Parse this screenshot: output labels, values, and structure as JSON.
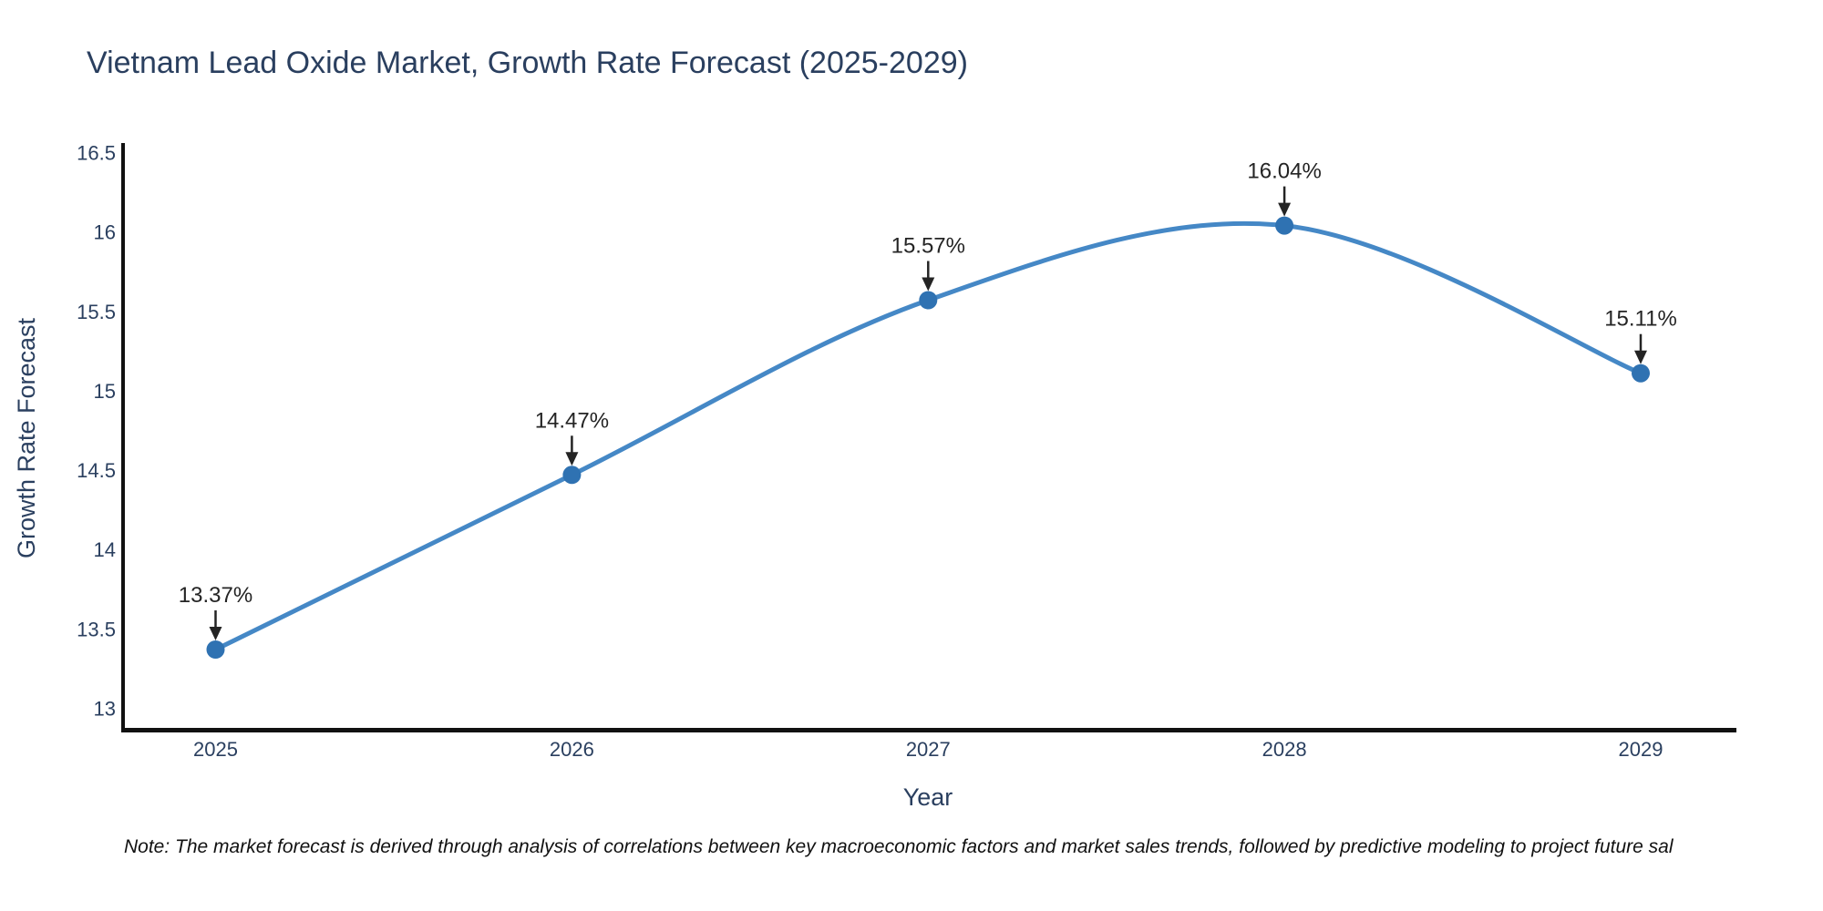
{
  "page": {
    "background": "#ffffff"
  },
  "note": "Note: The market forecast is derived through analysis of correlations between key macroeconomic factors and market sales trends, followed by predictive modeling to project future sal",
  "colors": {
    "line": "#4588c6",
    "marker": "#2f72b2",
    "text": "#2a3f5f",
    "annotation": "#242424",
    "axis": "#111111",
    "note": "#111111",
    "background": "#ffffff"
  },
  "chart_data": {
    "type": "line",
    "line_shape": "spline",
    "title": "Vietnam Lead Oxide Market, Growth Rate Forecast (2025-2029)",
    "xlabel": "Year",
    "ylabel": "Growth Rate Forecast",
    "x": [
      2025,
      2026,
      2027,
      2028,
      2029
    ],
    "values": [
      13.37,
      14.47,
      15.57,
      16.04,
      15.11
    ],
    "point_labels": [
      "13.37%",
      "14.47%",
      "15.57%",
      "16.04%",
      "15.11%"
    ],
    "x_tick_labels": [
      "2025",
      "2026",
      "2027",
      "2028",
      "2029"
    ],
    "y_tick_values": [
      13,
      13.5,
      14,
      14.5,
      15,
      15.5,
      16,
      16.5
    ],
    "y_tick_labels": [
      "13",
      "13.5",
      "14",
      "14.5",
      "15",
      "15.5",
      "16",
      "16.5"
    ],
    "ylim": [
      12.87,
      16.55
    ],
    "grid": false,
    "legend": null
  }
}
